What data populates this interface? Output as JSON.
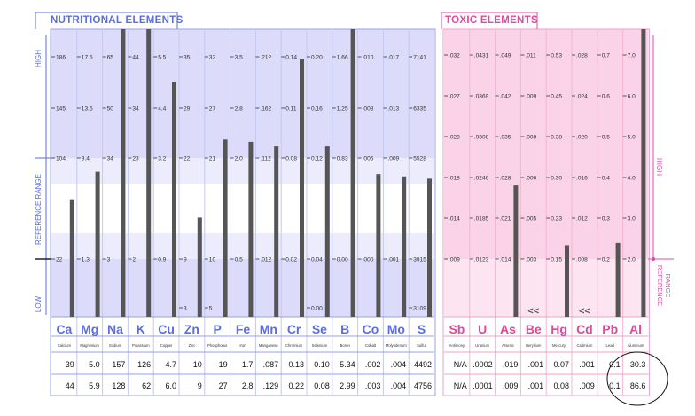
{
  "sections": {
    "nutritional_title": "NUTRITIONAL ELEMENTS",
    "toxic_title": "TOXIC ELEMENTS",
    "left_axis": {
      "high": "HIGH",
      "reference": "REFERENCE  RANGE",
      "low": "LOW"
    },
    "right_axis": {
      "high": "HIGH",
      "reference": "REFERENCE\nRANGE"
    }
  },
  "colors": {
    "nutritional_accent": "#5a6ee0",
    "toxic_accent": "#e0489c",
    "bar": "#555555",
    "nutritional_band_high": "#dcdcfa",
    "nutritional_band_ref": "#f3f3fe",
    "toxic_band": "#fbd3e8"
  },
  "chart_data": {
    "type": "bar",
    "nutritional": {
      "elements": [
        {
          "symbol": "Ca",
          "name": "Calcium",
          "ticks": [
            "186",
            "145",
            "104",
            "22"
          ],
          "bottom_tick": "",
          "bar_level": 0.26,
          "result": "39",
          "result2": "44"
        },
        {
          "symbol": "Mg",
          "name": "Magnesium",
          "ticks": [
            "17.5",
            "13.5",
            "9.4",
            "1.3"
          ],
          "bottom_tick": "",
          "bar_level": 0.38,
          "result": "5.0",
          "result2": "5.9"
        },
        {
          "symbol": "Na",
          "name": "Sodium",
          "ticks": [
            "65",
            "50",
            "34",
            "3"
          ],
          "bottom_tick": "",
          "bar_level": 1.0,
          "result": "157",
          "result2": "128"
        },
        {
          "symbol": "K",
          "name": "Potassium",
          "ticks": [
            "44",
            "34",
            "23",
            "2"
          ],
          "bottom_tick": "",
          "bar_level": 1.0,
          "result": "126",
          "result2": "62"
        },
        {
          "symbol": "Cu",
          "name": "Copper",
          "ticks": [
            "5.5",
            "4.4",
            "3.2",
            "0.9"
          ],
          "bottom_tick": "",
          "bar_level": 0.77,
          "result": "4.7",
          "result2": "6.0"
        },
        {
          "symbol": "Zn",
          "name": "Zinc",
          "ticks": [
            "35",
            "29",
            "22",
            "9"
          ],
          "bottom_tick": "3",
          "bar_level": 0.18,
          "result": "10",
          "result2": "9"
        },
        {
          "symbol": "P",
          "name": "Phosphorus",
          "ticks": [
            "32",
            "27",
            "21",
            "10"
          ],
          "bottom_tick": "5",
          "bar_level": 0.52,
          "result": "19",
          "result2": "27"
        },
        {
          "symbol": "Fe",
          "name": "Iron",
          "ticks": [
            "3.5",
            "2.8",
            "2.0",
            "0.5"
          ],
          "bottom_tick": "",
          "bar_level": 0.51,
          "result": "1.7",
          "result2": "2.8"
        },
        {
          "symbol": "Mn",
          "name": "Manganese",
          "ticks": [
            ".212",
            ".162",
            ".112",
            ".012"
          ],
          "bottom_tick": "",
          "bar_level": 0.49,
          "result": ".087",
          "result2": ".129"
        },
        {
          "symbol": "Cr",
          "name": "Chromium",
          "ticks": [
            "0.14",
            "0.11",
            "0.08",
            "0.02"
          ],
          "bottom_tick": "",
          "bar_level": 0.87,
          "result": "0.13",
          "result2": "0.22"
        },
        {
          "symbol": "Se",
          "name": "Selenium",
          "ticks": [
            "0.20",
            "0.16",
            "0.12",
            "0.04"
          ],
          "bottom_tick": "0.00",
          "bar_level": 0.49,
          "result": "0.10",
          "result2": "0.08"
        },
        {
          "symbol": "B",
          "name": "Boron",
          "ticks": [
            "1.66",
            "1.25",
            "0.83",
            "0.00"
          ],
          "bottom_tick": "",
          "bar_level": 1.0,
          "result": "5.34",
          "result2": "2.99"
        },
        {
          "symbol": "Co",
          "name": "Cobalt",
          "ticks": [
            ".010",
            ".008",
            ".005",
            ".000"
          ],
          "bottom_tick": "",
          "bar_level": 0.37,
          "result": ".002",
          "result2": ".003"
        },
        {
          "symbol": "Mo",
          "name": "Molybdenum",
          "ticks": [
            ".017",
            ".013",
            ".009",
            ".001"
          ],
          "bottom_tick": "",
          "bar_level": 0.36,
          "result": ".004",
          "result2": ".004"
        },
        {
          "symbol": "S",
          "name": "Sulfur",
          "ticks": [
            "7141",
            "6335",
            "5528",
            "3915"
          ],
          "bottom_tick": "3109",
          "bar_level": 0.35,
          "result": "4492",
          "result2": "4756"
        }
      ]
    },
    "toxic": {
      "elements": [
        {
          "symbol": "Sb",
          "name": "Antimony",
          "ticks": [
            ".032",
            ".027",
            ".023",
            ".018",
            ".014",
            ".009"
          ],
          "bar_level": 0.0,
          "marker": "",
          "result": "N/A",
          "result2": "N/A"
        },
        {
          "symbol": "U",
          "name": "Uranium",
          "ticks": [
            ".0431",
            ".0369",
            ".0308",
            ".0246",
            ".0185",
            ".0123"
          ],
          "bar_level": 0.0,
          "marker": "",
          "result": ".0002",
          "result2": ".0001"
        },
        {
          "symbol": "As",
          "name": "Arsenic",
          "ticks": [
            ".049",
            ".042",
            ".035",
            ".028",
            ".021",
            ".014"
          ],
          "bar_level": 0.32,
          "marker": "",
          "result": ".019",
          "result2": ".009"
        },
        {
          "symbol": "Be",
          "name": "Beryllium",
          "ticks": [
            ".011",
            ".009",
            ".008",
            ".006",
            ".005",
            ".003"
          ],
          "bar_level": 0.0,
          "marker": "<<",
          "result": ".001",
          "result2": ".001"
        },
        {
          "symbol": "Hg",
          "name": "Mercury",
          "ticks": [
            "0.53",
            "0.45",
            "0.38",
            "0.30",
            "0.23",
            "0.15"
          ],
          "bar_level": 0.06,
          "marker": "",
          "result": "0.07",
          "result2": "0.08"
        },
        {
          "symbol": "Cd",
          "name": "Cadmium",
          "ticks": [
            ".028",
            ".024",
            ".020",
            ".016",
            ".012",
            ".008"
          ],
          "bar_level": 0.0,
          "marker": "<<",
          "result": ".001",
          "result2": ".009"
        },
        {
          "symbol": "Pb",
          "name": "Lead",
          "ticks": [
            "0.7",
            "0.6",
            "0.5",
            "0.4",
            "0.3",
            "0.2"
          ],
          "bar_level": 0.07,
          "marker": "",
          "result": "0.1",
          "result2": "0.1"
        },
        {
          "symbol": "Al",
          "name": "Aluminum",
          "ticks": [
            "7.0",
            "6.0",
            "5.0",
            "4.0",
            "3.0",
            "2.0"
          ],
          "bar_level": 1.0,
          "marker": "",
          "result": "30.3",
          "result2": "86.6"
        }
      ]
    }
  }
}
